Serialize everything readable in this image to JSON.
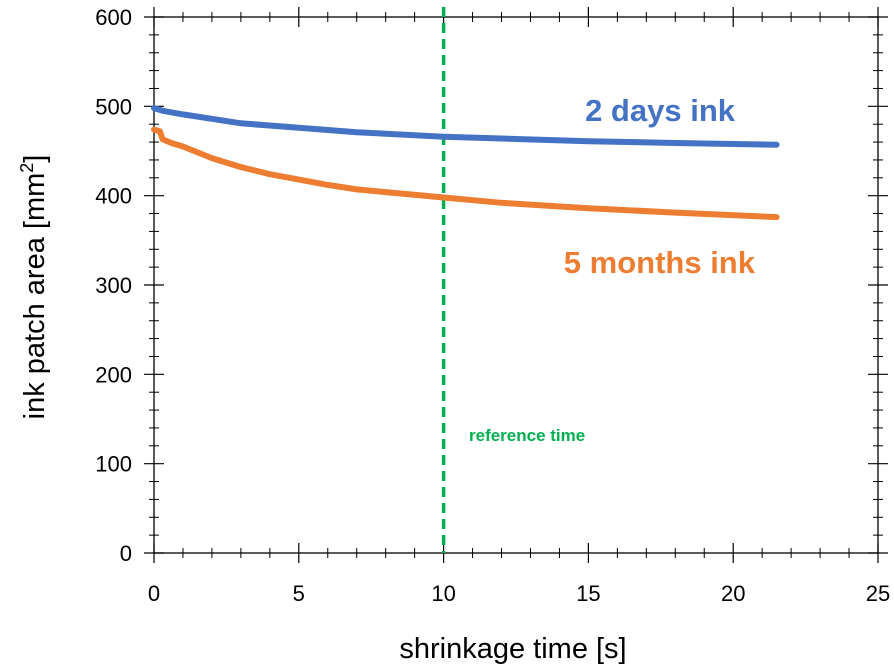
{
  "chart_data": {
    "type": "line",
    "title": "",
    "xlabel": "shrinkage time [s]",
    "ylabel_prefix": "ink patch area [mm",
    "ylabel_sup": "2",
    "ylabel_suffix": "]",
    "xlim": [
      0,
      25
    ],
    "ylim": [
      0,
      600
    ],
    "xticks": [
      0,
      5,
      10,
      15,
      20,
      25
    ],
    "yticks": [
      0,
      100,
      200,
      300,
      400,
      500,
      600
    ],
    "x_minor_step": 1,
    "y_minor_step": 20,
    "grid": false,
    "legend": "none",
    "series": [
      {
        "name": "2 days ink",
        "color": "#4472C4",
        "points": [
          [
            0,
            498
          ],
          [
            0.3,
            495
          ],
          [
            1,
            491
          ],
          [
            2,
            486
          ],
          [
            3,
            481
          ],
          [
            5,
            476
          ],
          [
            7,
            471
          ],
          [
            10,
            466
          ],
          [
            12,
            464
          ],
          [
            15,
            461
          ],
          [
            18,
            459
          ],
          [
            21.5,
            457
          ]
        ]
      },
      {
        "name": "5 months ink",
        "color": "#ED7D31",
        "points": [
          [
            0,
            474
          ],
          [
            0.2,
            472
          ],
          [
            0.3,
            463
          ],
          [
            0.6,
            459
          ],
          [
            1,
            455
          ],
          [
            2,
            442
          ],
          [
            3,
            432
          ],
          [
            4,
            424
          ],
          [
            5,
            418
          ],
          [
            6,
            412
          ],
          [
            7,
            407
          ],
          [
            8,
            404
          ],
          [
            10,
            398
          ],
          [
            12,
            392
          ],
          [
            15,
            386
          ],
          [
            18,
            381
          ],
          [
            21.5,
            376
          ]
        ]
      }
    ],
    "reference_line": {
      "x": 10,
      "label": "reference time",
      "color": "#00B050"
    }
  }
}
